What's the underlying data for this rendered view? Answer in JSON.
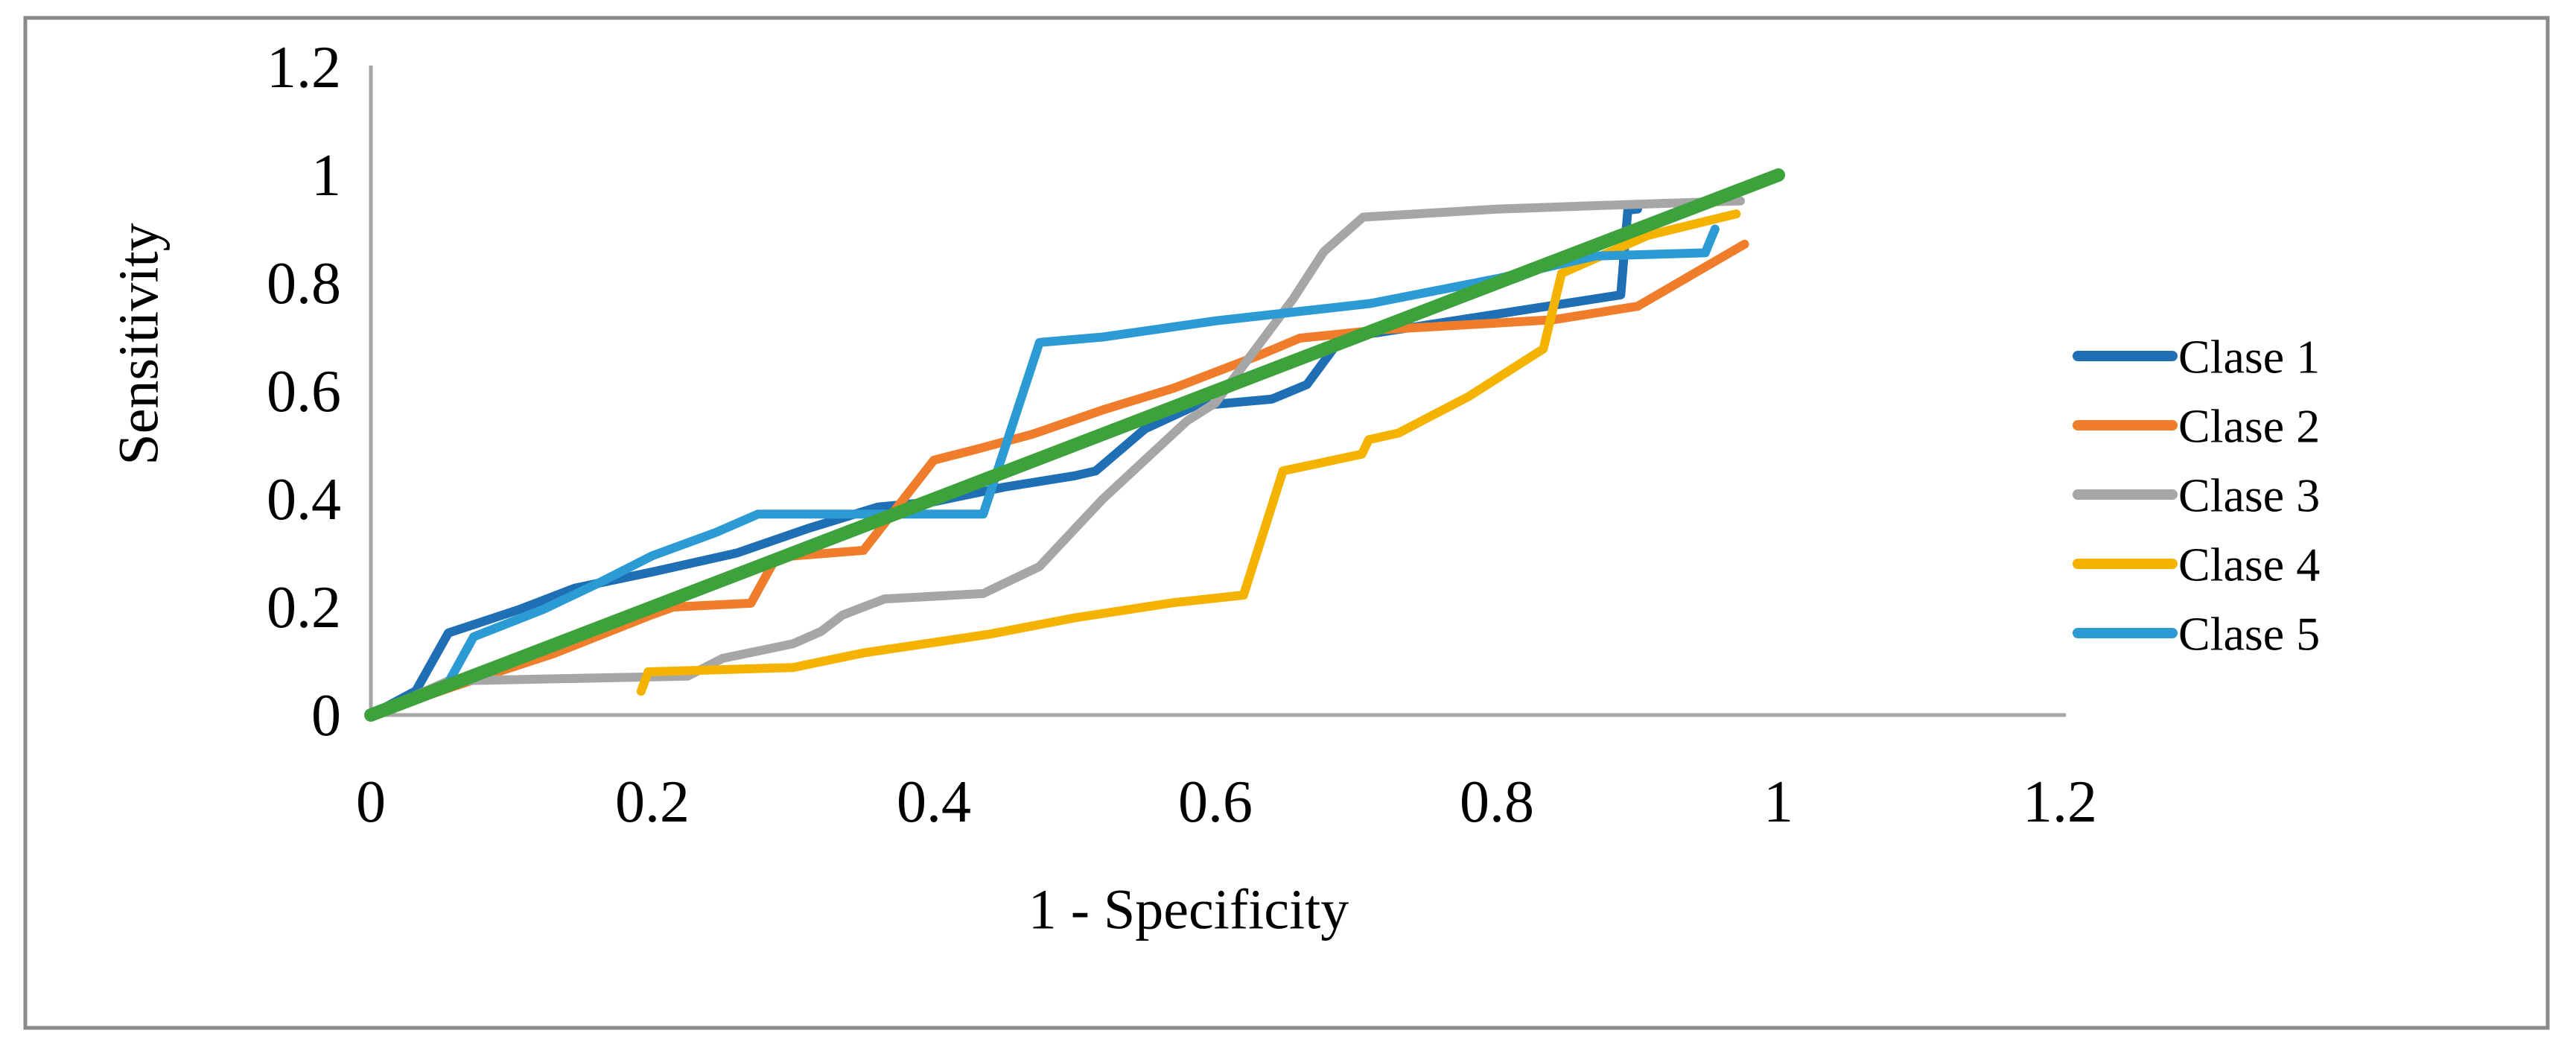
{
  "figure": {
    "kind": "roc-curve-figure",
    "background": "#ffffff",
    "border_color": "#8A8A8A"
  },
  "chart_data": {
    "type": "line",
    "title": "",
    "xlabel": "1 - Specificity",
    "ylabel": "Sensitivity",
    "xlim": [
      0,
      1.2
    ],
    "ylim": [
      0,
      1.2
    ],
    "grid": false,
    "legend_position": "right",
    "axis_color": "#A6A6A6",
    "x_ticks": {
      "values": [
        0,
        0.2,
        0.4,
        0.6,
        0.8,
        1,
        1.2
      ],
      "labels": [
        "0",
        "0.2",
        "0.4",
        "0.6",
        "0.8",
        "1",
        "1.2"
      ]
    },
    "y_ticks": {
      "values": [
        0,
        0.2,
        0.4,
        0.6,
        0.8,
        1,
        1.2
      ],
      "labels": [
        "0",
        "0.2",
        "0.4",
        "0.6",
        "0.8",
        "1",
        "1.2"
      ]
    },
    "series": [
      {
        "name": "Clase 1",
        "color": "#1F6FB5",
        "points": [
          [
            0,
            0
          ],
          [
            0.032,
            0.045
          ],
          [
            0.055,
            0.152
          ],
          [
            0.105,
            0.195
          ],
          [
            0.145,
            0.235
          ],
          [
            0.2,
            0.265
          ],
          [
            0.26,
            0.3
          ],
          [
            0.31,
            0.345
          ],
          [
            0.36,
            0.385
          ],
          [
            0.4,
            0.395
          ],
          [
            0.45,
            0.422
          ],
          [
            0.5,
            0.443
          ],
          [
            0.515,
            0.452
          ],
          [
            0.55,
            0.53
          ],
          [
            0.585,
            0.572
          ],
          [
            0.64,
            0.585
          ],
          [
            0.665,
            0.612
          ],
          [
            0.69,
            0.7
          ],
          [
            0.715,
            0.708
          ],
          [
            0.888,
            0.778
          ],
          [
            0.893,
            0.935
          ],
          [
            0.9,
            0.937
          ]
        ]
      },
      {
        "name": "Clase 2",
        "color": "#F07D2B",
        "points": [
          [
            0,
            0
          ],
          [
            0.06,
            0.054
          ],
          [
            0.13,
            0.114
          ],
          [
            0.2,
            0.186
          ],
          [
            0.215,
            0.2
          ],
          [
            0.27,
            0.207
          ],
          [
            0.288,
            0.292
          ],
          [
            0.35,
            0.305
          ],
          [
            0.4,
            0.472
          ],
          [
            0.43,
            0.492
          ],
          [
            0.47,
            0.52
          ],
          [
            0.52,
            0.565
          ],
          [
            0.57,
            0.605
          ],
          [
            0.63,
            0.665
          ],
          [
            0.66,
            0.698
          ],
          [
            0.72,
            0.714
          ],
          [
            0.84,
            0.732
          ],
          [
            0.9,
            0.757
          ],
          [
            0.976,
            0.872
          ]
        ]
      },
      {
        "name": "Clase 3",
        "color": "#A6A6A6",
        "points": [
          [
            0,
            0
          ],
          [
            0.055,
            0.063
          ],
          [
            0.225,
            0.072
          ],
          [
            0.25,
            0.105
          ],
          [
            0.3,
            0.132
          ],
          [
            0.32,
            0.155
          ],
          [
            0.335,
            0.185
          ],
          [
            0.365,
            0.215
          ],
          [
            0.435,
            0.225
          ],
          [
            0.475,
            0.275
          ],
          [
            0.52,
            0.4
          ],
          [
            0.58,
            0.545
          ],
          [
            0.6,
            0.578
          ],
          [
            0.655,
            0.77
          ],
          [
            0.677,
            0.858
          ],
          [
            0.705,
            0.922
          ],
          [
            0.8,
            0.937
          ],
          [
            0.9,
            0.946
          ],
          [
            0.973,
            0.952
          ]
        ]
      },
      {
        "name": "Clase 4",
        "color": "#F3B300",
        "points": [
          [
            0.192,
            0.044
          ],
          [
            0.197,
            0.08
          ],
          [
            0.3,
            0.088
          ],
          [
            0.35,
            0.115
          ],
          [
            0.44,
            0.15
          ],
          [
            0.5,
            0.18
          ],
          [
            0.57,
            0.208
          ],
          [
            0.62,
            0.222
          ],
          [
            0.648,
            0.452
          ],
          [
            0.704,
            0.483
          ],
          [
            0.709,
            0.51
          ],
          [
            0.73,
            0.522
          ],
          [
            0.78,
            0.59
          ],
          [
            0.833,
            0.678
          ],
          [
            0.846,
            0.818
          ],
          [
            0.907,
            0.888
          ],
          [
            0.97,
            0.928
          ]
        ]
      },
      {
        "name": "Clase 5",
        "color": "#2D9BD3",
        "points": [
          [
            0,
            0
          ],
          [
            0.055,
            0.06
          ],
          [
            0.073,
            0.145
          ],
          [
            0.122,
            0.195
          ],
          [
            0.16,
            0.242
          ],
          [
            0.2,
            0.295
          ],
          [
            0.245,
            0.338
          ],
          [
            0.275,
            0.372
          ],
          [
            0.435,
            0.372
          ],
          [
            0.475,
            0.69
          ],
          [
            0.52,
            0.7
          ],
          [
            0.6,
            0.73
          ],
          [
            0.71,
            0.762
          ],
          [
            0.8,
            0.808
          ],
          [
            0.87,
            0.85
          ],
          [
            0.948,
            0.856
          ],
          [
            0.955,
            0.9
          ]
        ]
      }
    ],
    "reference_line": {
      "name": "chance-diagonal",
      "color": "#3EA23C",
      "points": [
        [
          0,
          0
        ],
        [
          1,
          1
        ]
      ]
    }
  }
}
